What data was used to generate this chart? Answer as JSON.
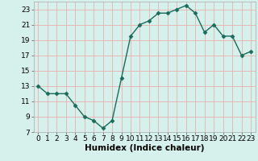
{
  "x": [
    0,
    1,
    2,
    3,
    4,
    5,
    6,
    7,
    8,
    9,
    10,
    11,
    12,
    13,
    14,
    15,
    16,
    17,
    18,
    19,
    20,
    21,
    22,
    23
  ],
  "y": [
    13,
    12,
    12,
    12,
    10.5,
    9,
    8.5,
    7.5,
    8.5,
    14,
    19.5,
    21,
    21.5,
    22.5,
    22.5,
    23,
    23.5,
    22.5,
    20,
    21,
    19.5,
    19.5,
    17,
    17.5
  ],
  "line_color": "#1a6b5a",
  "marker": "D",
  "marker_size": 2.5,
  "bg_color": "#d6f0eb",
  "grid_color": "#e8b0b0",
  "xlabel": "Humidex (Indice chaleur)",
  "ylabel": "",
  "xlim": [
    -0.5,
    23.5
  ],
  "ylim": [
    7,
    24
  ],
  "yticks": [
    7,
    9,
    11,
    13,
    15,
    17,
    19,
    21,
    23
  ],
  "xticks": [
    0,
    1,
    2,
    3,
    4,
    5,
    6,
    7,
    8,
    9,
    10,
    11,
    12,
    13,
    14,
    15,
    16,
    17,
    18,
    19,
    20,
    21,
    22,
    23
  ],
  "xlabel_fontsize": 7.5,
  "tick_fontsize": 6.5,
  "line_width": 1.0
}
